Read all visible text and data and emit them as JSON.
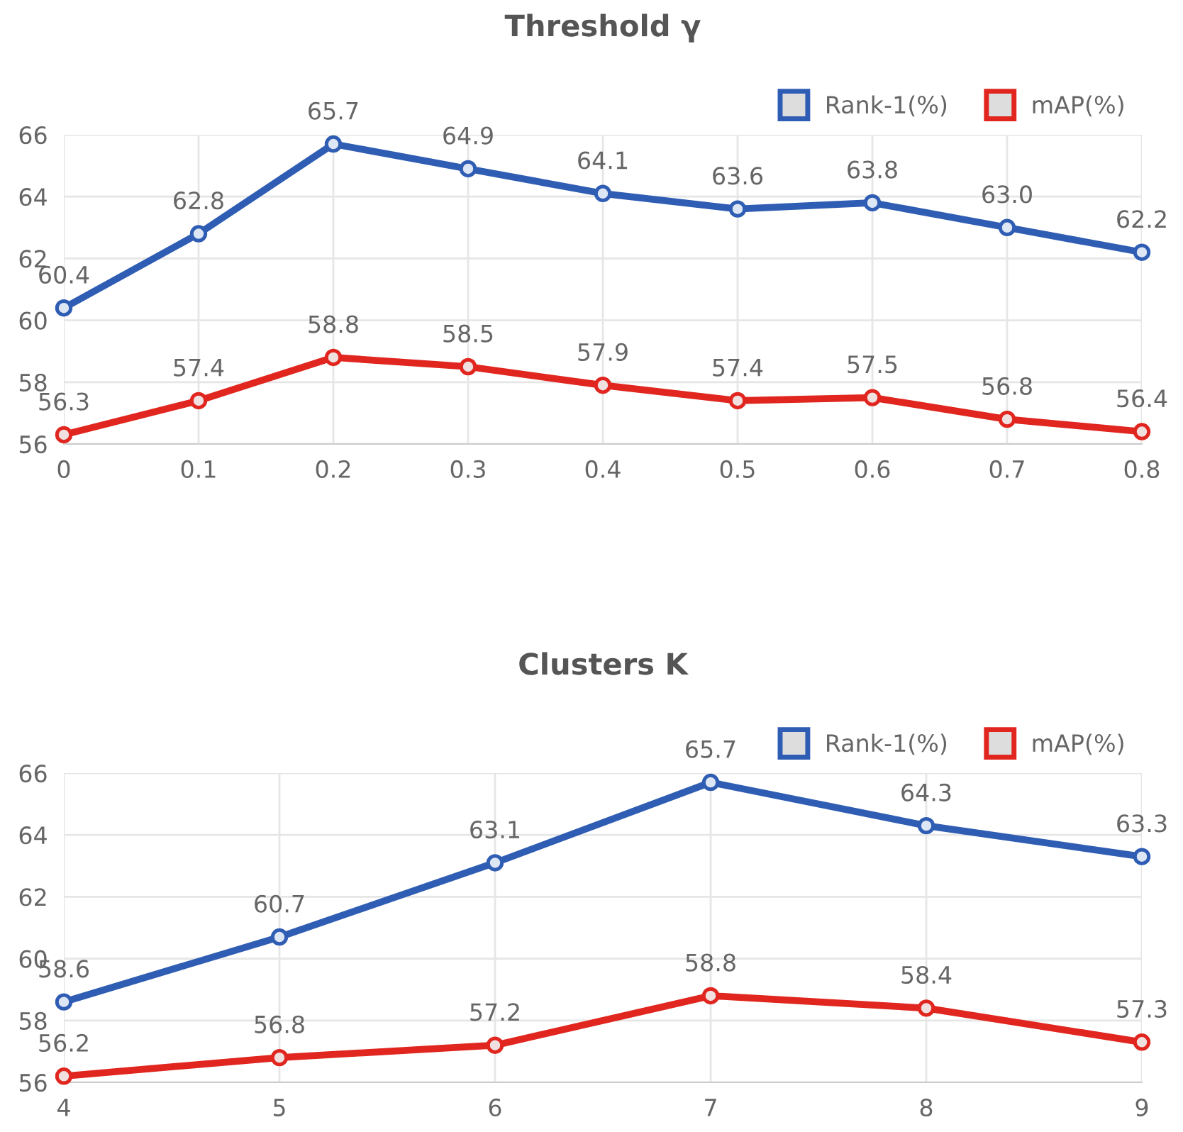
{
  "chart_data": [
    {
      "type": "line",
      "title": "Threshold γ",
      "categories": [
        "0",
        "0.1",
        "0.2",
        "0.3",
        "0.4",
        "0.5",
        "0.6",
        "0.7",
        "0.8"
      ],
      "series": [
        {
          "name": "Rank-1(%)",
          "color": "#2f5db3",
          "values": [
            60.4,
            62.8,
            65.7,
            64.9,
            64.1,
            63.6,
            63.8,
            63.0,
            62.2
          ]
        },
        {
          "name": "mAP(%)",
          "color": "#e0261f",
          "values": [
            56.3,
            57.4,
            58.8,
            58.5,
            57.9,
            57.4,
            57.5,
            56.8,
            56.4
          ]
        }
      ],
      "ylim": [
        56,
        66
      ],
      "yticks": [
        56,
        58,
        60,
        62,
        64,
        66
      ],
      "grid": true,
      "legend": "top right",
      "marker": "circle",
      "line_style": "solid",
      "value_labels": [
        [
          "60.4",
          "62.8",
          "65.7",
          "64.9",
          "64.1",
          "63.6",
          "63.8",
          "63.0",
          "62.2"
        ],
        [
          "56.3",
          "57.4",
          "58.8",
          "58.5",
          "57.9",
          "57.4",
          "57.5",
          "56.8",
          "56.4"
        ]
      ]
    },
    {
      "type": "line",
      "title": "Clusters K",
      "categories": [
        "4",
        "5",
        "6",
        "7",
        "8",
        "9"
      ],
      "series": [
        {
          "name": "Rank-1(%)",
          "color": "#2f5db3",
          "values": [
            58.6,
            60.7,
            63.1,
            65.7,
            64.3,
            63.3
          ]
        },
        {
          "name": "mAP(%)",
          "color": "#e0261f",
          "values": [
            56.2,
            56.8,
            57.2,
            58.8,
            58.4,
            57.3
          ]
        }
      ],
      "ylim": [
        56,
        66
      ],
      "yticks": [
        56,
        58,
        60,
        62,
        64,
        66
      ],
      "grid": true,
      "legend": "top right",
      "marker": "circle",
      "line_style": "solid",
      "value_labels": [
        [
          "58.6",
          "60.7",
          "63.1",
          "65.7",
          "64.3",
          "63.3"
        ],
        [
          "56.2",
          "56.8",
          "57.2",
          "58.8",
          "58.4",
          "57.3"
        ]
      ]
    }
  ]
}
